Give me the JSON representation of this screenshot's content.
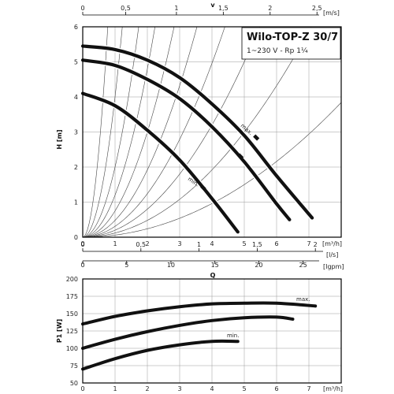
{
  "chart_data": [
    {
      "type": "line",
      "title": "Wilo-TOP-Z 30/7",
      "subtitle": "1~230 V - Rp 1¼",
      "xlabel": "Q",
      "ylabel": "H [m]",
      "x_unit": "[m³/h]",
      "xlim": [
        0,
        8
      ],
      "ylim": [
        0,
        6
      ],
      "x_ticks": [
        "0",
        "1",
        "2",
        "3",
        "4",
        "5",
        "6",
        "7"
      ],
      "y_ticks": [
        "0",
        "1",
        "2",
        "3",
        "4",
        "5",
        "6"
      ],
      "grid": true,
      "secondary_axes": {
        "velocity": {
          "unit": "[m/s]",
          "label": "v",
          "ticks": [
            {
              "label": "0",
              "q": 0
            },
            {
              "label": "0,5",
              "q": 1.33
            },
            {
              "label": "1",
              "q": 2.9
            },
            {
              "label": "1,5",
              "q": 4.35
            },
            {
              "label": "2",
              "q": 5.8
            },
            {
              "label": "2,5",
              "q": 7.25
            }
          ]
        },
        "flow_ls": {
          "unit": "[l/s]",
          "ticks": [
            {
              "label": "0",
              "q": 0
            },
            {
              "label": "0,5",
              "q": 1.8
            },
            {
              "label": "1",
              "q": 3.6
            },
            {
              "label": "1,5",
              "q": 5.4
            },
            {
              "label": "2",
              "q": 7.2
            }
          ]
        },
        "flow_igpm": {
          "unit": "[Igpm]",
          "ticks": [
            {
              "label": "0",
              "q": 0
            },
            {
              "label": "5",
              "q": 1.36
            },
            {
              "label": "10",
              "q": 2.73
            },
            {
              "label": "15",
              "q": 4.09
            },
            {
              "label": "20",
              "q": 5.45
            },
            {
              "label": "25",
              "q": 6.82
            }
          ]
        }
      },
      "series": [
        {
          "name": "max.",
          "x": [
            0,
            1,
            2,
            3,
            4,
            5,
            6,
            7.1
          ],
          "y": [
            5.45,
            5.35,
            5.05,
            4.55,
            3.8,
            2.9,
            1.75,
            0.55
          ]
        },
        {
          "name": "",
          "x": [
            0,
            1,
            2,
            3,
            4,
            5,
            6,
            6.4
          ],
          "y": [
            5.05,
            4.9,
            4.5,
            3.95,
            3.15,
            2.15,
            0.95,
            0.5
          ]
        },
        {
          "name": "min.",
          "x": [
            0,
            1,
            2,
            3,
            4,
            4.8
          ],
          "y": [
            4.1,
            3.75,
            3.05,
            2.2,
            1.1,
            0.15
          ]
        }
      ]
    },
    {
      "type": "line",
      "title": "",
      "xlabel": "",
      "ylabel": "P1 [W]",
      "x_unit": "[m³/h]",
      "xlim": [
        0,
        8
      ],
      "ylim": [
        50,
        200
      ],
      "x_ticks": [
        "0",
        "1",
        "2",
        "3",
        "4",
        "5",
        "6",
        "7"
      ],
      "y_ticks": [
        "50",
        "75",
        "100",
        "125",
        "150",
        "175",
        "200"
      ],
      "grid": true,
      "series": [
        {
          "name": "max.",
          "x": [
            0,
            1,
            2,
            3,
            4,
            5,
            6,
            7.2
          ],
          "y": [
            135,
            146,
            154,
            160,
            164,
            165,
            165,
            161
          ]
        },
        {
          "name": "",
          "x": [
            0,
            1,
            2,
            3,
            4,
            5,
            6,
            6.5
          ],
          "y": [
            100,
            113,
            124,
            133,
            140,
            144,
            145,
            142
          ]
        },
        {
          "name": "min.",
          "x": [
            0,
            1,
            2,
            3,
            4,
            4.8
          ],
          "y": [
            70,
            85,
            97,
            105,
            110,
            110
          ]
        }
      ]
    }
  ]
}
